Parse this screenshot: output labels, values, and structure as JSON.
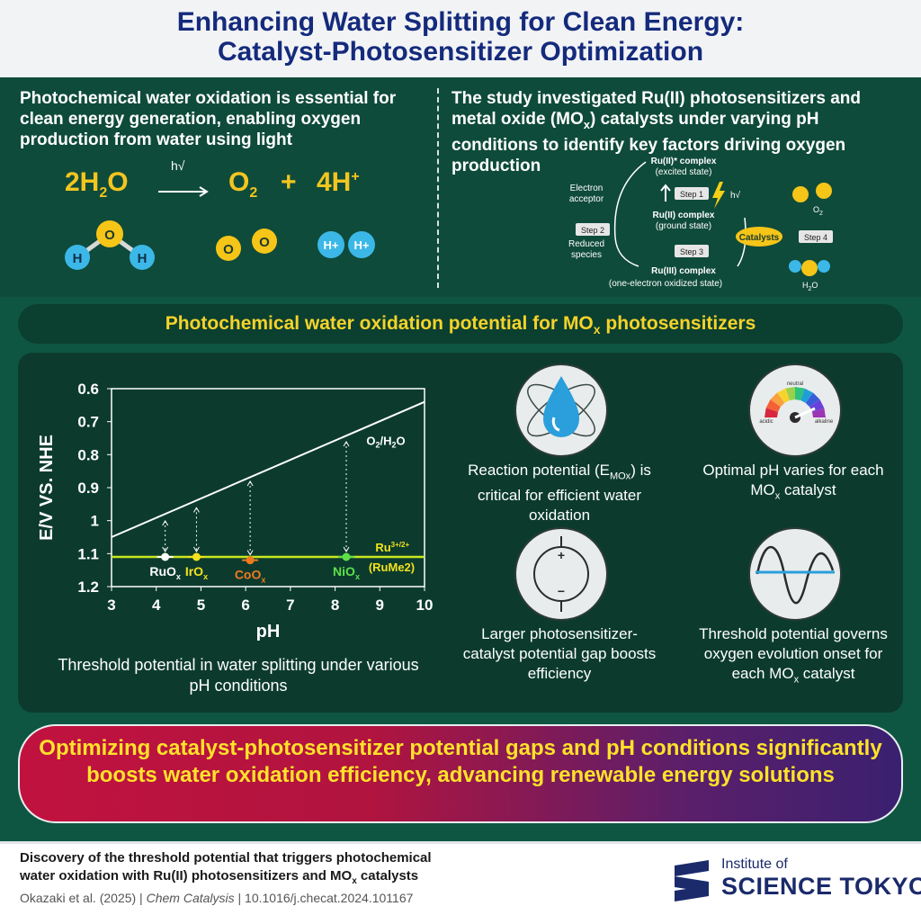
{
  "header": {
    "title_line1": "Enhancing Water Splitting for Clean Energy:",
    "title_line2": "Catalyst-Photosensitizer Optimization"
  },
  "intro": {
    "left": "Photochemical water oxidation is essential for clean energy generation, enabling oxygen production from water using light",
    "right_pre": "The study investigated Ru(II) photosensitizers and metal oxide (MO",
    "right_sub": "x",
    "right_post": ") catalysts under varying pH conditions to identify key factors driving oxygen production"
  },
  "equation": {
    "reactant_coef": "2H",
    "reactant_sub": "2",
    "reactant_tail": "O",
    "arrow_label": "h√",
    "product1": "O",
    "product1_sub": "2",
    "plus": "+",
    "product2": "4H",
    "product2_sup": "+",
    "molecule_labels": {
      "h": "H",
      "o": "O",
      "h_plus": "H+"
    }
  },
  "cycle": {
    "excited": "Ru(II)* complex",
    "excited_sub": "(excited state)",
    "ground": "Ru(II) complex",
    "ground_sub": "(ground state)",
    "oxidized": "Ru(III) complex",
    "oxidized_sub": "(one-electron oxidized state)",
    "acceptor_line1": "Electron",
    "acceptor_line2": "acceptor",
    "reduced_line1": "Reduced",
    "reduced_line2": "species",
    "step1": "Step 1",
    "step2": "Step 2",
    "step3": "Step 3",
    "step4": "Step 4",
    "hv": "h√",
    "catalysts": "Catalysts",
    "o2": "O",
    "o2_sub": "2",
    "h2o": "H",
    "h2o_sub": "2",
    "h2o_tail": "O"
  },
  "banner": {
    "pre": "Photochemical water oxidation potential for MO",
    "sub": "x",
    "post": " photosensitizers"
  },
  "chart_data": {
    "type": "scatter",
    "xlabel": "pH",
    "ylabel": "E/V VS. NHE",
    "xlim": [
      3,
      10
    ],
    "ylim": [
      1.2,
      0.6
    ],
    "y_inverted": true,
    "x_ticks": [
      "3",
      "4",
      "5",
      "6",
      "7",
      "8",
      "9",
      "10"
    ],
    "y_ticks": [
      "0.6",
      "0.7",
      "0.8",
      "0.9",
      "1",
      "1.1",
      "1.2"
    ],
    "line_o2h2o": {
      "label": "O2/H2O",
      "x": [
        3,
        10
      ],
      "y": [
        1.05,
        0.64
      ]
    },
    "line_ru": {
      "label_main": "Ru",
      "label_sup": "3+/2+",
      "label_second": "(RuMe2)",
      "y": 1.11
    },
    "points": [
      {
        "label": "RuO",
        "sub": "x",
        "x": 4.2,
        "y": 1.11,
        "top": 0.99,
        "color": "#ffffff"
      },
      {
        "label": "IrO",
        "sub": "x",
        "x": 4.9,
        "y": 1.11,
        "top": 0.95,
        "color": "#f3e21c"
      },
      {
        "label": "CoO",
        "sub": "x",
        "x": 6.1,
        "y": 1.12,
        "top": 0.87,
        "color": "#f07a1e"
      },
      {
        "label": "NiO",
        "sub": "x",
        "x": 8.25,
        "y": 1.11,
        "top": 0.75,
        "color": "#5fe04a"
      }
    ],
    "caption": "Threshold potential in water splitting under various pH conditions"
  },
  "features": {
    "f1_pre": "Reaction potential (E",
    "f1_sub": "MOx",
    "f1_post": ") is critical for efficient water oxidation",
    "f2_pre": "Optimal pH varies for each MO",
    "f2_sub": "x",
    "f2_post": " catalyst",
    "f3": "Larger photosensitizer-catalyst potential gap boosts efficiency",
    "f4_pre": "Threshold potential governs oxygen evolution onset for each MO",
    "f4_sub": "x",
    "f4_post": " catalyst",
    "gauge_labels": {
      "neutral": "neutral",
      "acidic": "acidic",
      "alkaline": "alkaline"
    },
    "battery_plus": "+",
    "battery_minus": "−"
  },
  "conclusion": "Optimizing catalyst-photosensitizer potential gaps and pH conditions significantly boosts water oxidation efficiency, advancing renewable energy solutions",
  "footer": {
    "title_line1": "Discovery of the threshold potential that triggers photochemical",
    "title_line2_pre": "water oxidation with Ru(II) photosensitizers and MO",
    "title_line2_sub": "x",
    "title_line2_post": " catalysts",
    "authors": "Okazaki et al. (2025)",
    "sep1": " | ",
    "journal": "Chem Catalysis",
    "sep2": " | ",
    "doi": "10.1016/j.checat.2024.101167",
    "logo_small": "Institute of",
    "logo_big": "SCIENCE TOKYO"
  },
  "colors": {
    "title": "#142a7c",
    "accent_yellow": "#f3c51f",
    "panel_green": "#0f4b3a",
    "ru_line": "#c8e81e"
  }
}
